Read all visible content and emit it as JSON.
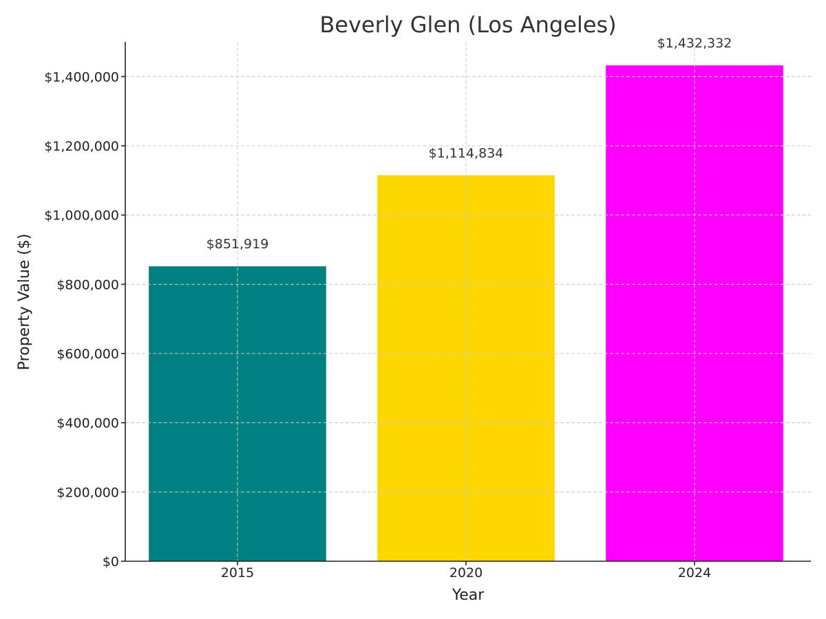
{
  "chart_data": {
    "type": "bar",
    "title": "Beverly Glen (Los Angeles)",
    "xlabel": "Year",
    "ylabel": "Property Value ($)",
    "categories": [
      "2015",
      "2020",
      "2024"
    ],
    "values": [
      851919,
      1114834,
      1432332
    ],
    "value_labels": [
      "$851,919",
      "$1,114,834",
      "$1,432,332"
    ],
    "colors": [
      "#008080",
      "#FFD700",
      "#FF00FF"
    ],
    "ylim": [
      0,
      1500000
    ],
    "yticks": [
      0,
      200000,
      400000,
      600000,
      800000,
      1000000,
      1200000,
      1400000
    ],
    "ytick_labels": [
      "$0",
      "$200,000",
      "$400,000",
      "$600,000",
      "$800,000",
      "$1,000,000",
      "$1,200,000",
      "$1,400,000"
    ],
    "grid": true,
    "legend": "none"
  }
}
